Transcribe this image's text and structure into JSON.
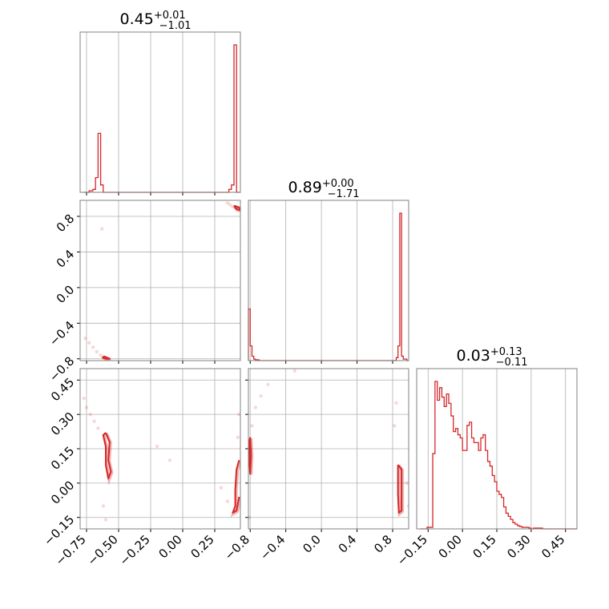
{
  "chart_data": {
    "type": "corner",
    "color": "#d62728",
    "titles": [
      {
        "median": "0.45",
        "plus": "+0.01",
        "minus": "−1.01"
      },
      {
        "median": "0.89",
        "plus": "+0.00",
        "minus": "−1.71"
      },
      {
        "median": "0.03",
        "plus": "+0.13",
        "minus": "−0.11"
      }
    ],
    "param_ranges": [
      [
        -0.8,
        0.45
      ],
      [
        -0.82,
        0.98
      ],
      [
        -0.2,
        0.5
      ]
    ],
    "ticks": [
      {
        "values": [
          -0.75,
          -0.5,
          -0.25,
          0.0,
          0.25
        ],
        "labels": [
          "−0.75",
          "−0.50",
          "−0.25",
          "0.00",
          "0.25"
        ]
      },
      {
        "values": [
          -0.8,
          -0.4,
          0.0,
          0.4,
          0.8
        ],
        "labels": [
          "−0.8",
          "−0.4",
          "0.0",
          "0.4",
          "0.8"
        ]
      },
      {
        "values": [
          -0.15,
          0.0,
          0.15,
          0.3,
          0.45
        ],
        "labels": [
          "−0.15",
          "0.00",
          "0.15",
          "0.30",
          "0.45"
        ]
      }
    ],
    "hist_1d": [
      {
        "x": [
          -0.77,
          -0.73,
          -0.7,
          -0.68,
          -0.66,
          -0.64,
          -0.62,
          -0.6,
          -0.58,
          -0.56,
          -0.54,
          0.36,
          0.38,
          0.4,
          0.42,
          0.44
        ],
        "y": [
          0,
          0.01,
          0.02,
          0.1,
          0.4,
          0.05,
          0,
          0,
          0,
          0,
          0,
          0.02,
          0.05,
          1.0,
          0,
          0
        ]
      },
      {
        "x": [
          -0.82,
          -0.8,
          -0.78,
          -0.76,
          -0.74,
          -0.7,
          0.0,
          0.8,
          0.84,
          0.86,
          0.88,
          0.9,
          0.92,
          0.96
        ],
        "y": [
          0.35,
          0.1,
          0.03,
          0.01,
          0.005,
          0.0,
          0.0,
          0.0,
          0.02,
          0.1,
          1.0,
          0.03,
          0.01,
          0.0
        ]
      },
      {
        "x": [
          -0.185,
          -0.155,
          -0.13,
          -0.12,
          -0.11,
          -0.1,
          -0.09,
          -0.08,
          -0.07,
          -0.06,
          -0.05,
          -0.04,
          -0.03,
          -0.02,
          -0.01,
          0.0,
          0.01,
          0.02,
          0.03,
          0.04,
          0.05,
          0.06,
          0.07,
          0.08,
          0.09,
          0.1,
          0.11,
          0.12,
          0.13,
          0.14,
          0.15,
          0.16,
          0.17,
          0.18,
          0.19,
          0.2,
          0.21,
          0.22,
          0.23,
          0.24,
          0.25,
          0.26,
          0.27,
          0.28,
          0.29,
          0.3,
          0.31,
          0.33,
          0.35,
          0.4,
          0.45
        ],
        "y": [
          0.0,
          0.01,
          0.48,
          0.94,
          0.82,
          0.9,
          0.84,
          0.78,
          0.86,
          0.8,
          0.72,
          0.62,
          0.64,
          0.6,
          0.58,
          0.5,
          0.5,
          0.66,
          0.68,
          0.58,
          0.55,
          0.55,
          0.5,
          0.58,
          0.6,
          0.5,
          0.43,
          0.4,
          0.34,
          0.3,
          0.24,
          0.22,
          0.2,
          0.14,
          0.1,
          0.08,
          0.06,
          0.04,
          0.03,
          0.02,
          0.015,
          0.01,
          0.01,
          0.01,
          0.005,
          0.0,
          0.005,
          0.005,
          0.0,
          0.0,
          0.0
        ]
      }
    ],
    "scatter_2d": [
      {
        "xi": 0,
        "yi": 1,
        "points": [
          [
            0.35,
            0.95
          ],
          [
            0.37,
            0.93
          ],
          [
            0.39,
            0.91
          ],
          [
            0.41,
            0.9
          ],
          [
            0.43,
            0.89
          ],
          [
            0.44,
            0.88
          ],
          [
            -0.76,
            -0.57
          ],
          [
            -0.73,
            -0.62
          ],
          [
            -0.7,
            -0.67
          ],
          [
            -0.67,
            -0.72
          ],
          [
            -0.64,
            -0.76
          ],
          [
            -0.6,
            -0.79
          ],
          [
            -0.58,
            -0.8
          ],
          [
            -0.63,
            0.66
          ]
        ],
        "contours": [
          [
            [
              0.4,
              0.92
            ],
            [
              0.44,
              0.9
            ],
            [
              0.45,
              0.87
            ],
            [
              0.42,
              0.88
            ],
            [
              0.4,
              0.92
            ]
          ],
          [
            [
              -0.62,
              -0.77
            ],
            [
              -0.57,
              -0.8
            ],
            [
              -0.6,
              -0.8
            ],
            [
              -0.63,
              -0.78
            ]
          ]
        ]
      },
      {
        "xi": 0,
        "yi": 2,
        "points": [
          [
            -0.77,
            0.37
          ],
          [
            -0.75,
            0.33
          ],
          [
            -0.72,
            0.3
          ],
          [
            -0.69,
            0.27
          ],
          [
            -0.66,
            0.24
          ],
          [
            -0.62,
            -0.1
          ],
          [
            -0.6,
            -0.16
          ],
          [
            -0.2,
            0.16
          ],
          [
            -0.1,
            0.1
          ],
          [
            0.3,
            -0.02
          ],
          [
            0.35,
            -0.08
          ],
          [
            0.44,
            0.3
          ],
          [
            0.43,
            0.2
          ]
        ],
        "contours": [
          [
            [
              -0.6,
              0.22
            ],
            [
              -0.57,
              0.18
            ],
            [
              -0.58,
              0.1
            ],
            [
              -0.56,
              0.05
            ],
            [
              -0.58,
              0.02
            ],
            [
              -0.6,
              0.08
            ],
            [
              -0.6,
              0.16
            ],
            [
              -0.62,
              0.21
            ],
            [
              -0.6,
              0.22
            ]
          ],
          [
            [
              0.44,
              0.1
            ],
            [
              0.42,
              0.06
            ],
            [
              0.41,
              -0.03
            ],
            [
              0.41,
              -0.1
            ],
            [
              0.39,
              -0.13
            ],
            [
              0.42,
              -0.12
            ],
            [
              0.44,
              -0.06
            ]
          ]
        ]
      },
      {
        "xi": 1,
        "yi": 2,
        "points": [
          [
            -0.82,
            0.05
          ],
          [
            -0.8,
            0.15
          ],
          [
            -0.78,
            0.25
          ],
          [
            -0.74,
            0.33
          ],
          [
            -0.68,
            0.38
          ],
          [
            -0.6,
            0.43
          ],
          [
            -0.3,
            0.49
          ],
          [
            -0.81,
            -0.15
          ],
          [
            0.82,
            0.25
          ],
          [
            0.84,
            0.35
          ],
          [
            0.96,
            0.0
          ],
          [
            0.98,
            -0.1
          ]
        ],
        "contours": [
          [
            [
              -0.8,
              0.2
            ],
            [
              -0.79,
              0.12
            ],
            [
              -0.8,
              0.04
            ],
            [
              -0.81,
              0.1
            ],
            [
              -0.81,
              0.18
            ],
            [
              -0.8,
              0.2
            ]
          ],
          [
            [
              0.86,
              0.08
            ],
            [
              0.9,
              0.06
            ],
            [
              0.9,
              -0.05
            ],
            [
              0.9,
              -0.12
            ],
            [
              0.87,
              -0.13
            ],
            [
              0.86,
              -0.05
            ],
            [
              0.86,
              0.08
            ]
          ]
        ]
      }
    ]
  }
}
